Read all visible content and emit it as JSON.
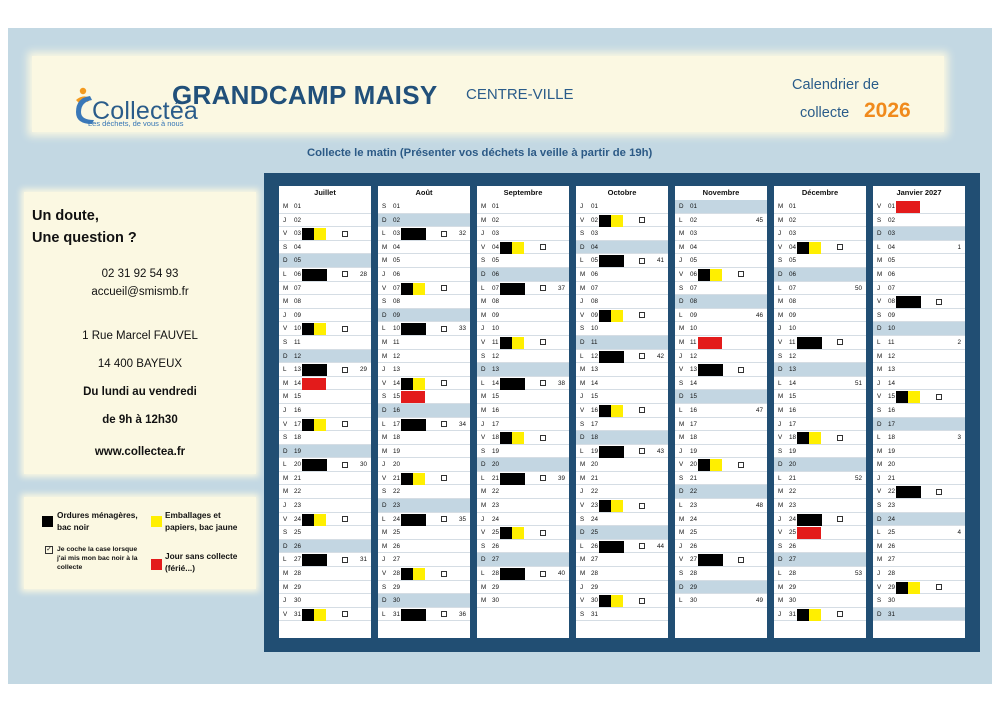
{
  "header": {
    "logo_text": "Collectéa",
    "logo_tagline": "Les déchets, de vous à nous",
    "town": "GRANDCAMP MAISY",
    "district": "CENTRE-VILLE",
    "calendar_label_line1": "Calendrier de",
    "calendar_label_line2": "collecte",
    "year": "2026"
  },
  "subtitle": "Collecte le matin (Présenter vos déchets la veille à partir de 19h)",
  "contact": {
    "question_line1": "Un doute,",
    "question_line2": "Une question ?",
    "phone": "02 31 92 54 93",
    "email": "accueil@smismb.fr",
    "street": "1 Rue Marcel FAUVEL",
    "city": "14 400 BAYEUX",
    "days": "Du lundi au vendredi",
    "hours": "de 9h à 12h30",
    "website": "www.collectea.fr"
  },
  "legend": {
    "black_label_line1": "Ordures ménagères,",
    "black_label_line2": "bac noir",
    "yellow_label_line1": "Emballages et",
    "yellow_label_line2": "papiers, bac jaune",
    "check_label_line1": "Je coche la case lorsque",
    "check_label_line2": "j'ai mis mon bac noir à la",
    "check_label_line3": "collecte",
    "check_mark": "✓",
    "red_label_line1": "Jour sans collecte",
    "red_label_line2": "(férié...)",
    "colors": {
      "black": "#000000",
      "yellow": "#ffef00",
      "red": "#e31b1b"
    }
  },
  "months": [
    {
      "name": "Juillet",
      "days": [
        {
          "d": "M",
          "n": "01"
        },
        {
          "d": "J",
          "n": "02"
        },
        {
          "d": "V",
          "n": "03",
          "t": "by",
          "cb": true
        },
        {
          "d": "S",
          "n": "04"
        },
        {
          "d": "D",
          "n": "05"
        },
        {
          "d": "L",
          "n": "06",
          "t": "b",
          "cb": true,
          "w": "28"
        },
        {
          "d": "M",
          "n": "07"
        },
        {
          "d": "M",
          "n": "08"
        },
        {
          "d": "J",
          "n": "09"
        },
        {
          "d": "V",
          "n": "10",
          "t": "by",
          "cb": true
        },
        {
          "d": "S",
          "n": "11"
        },
        {
          "d": "D",
          "n": "12"
        },
        {
          "d": "L",
          "n": "13",
          "t": "b",
          "cb": true,
          "w": "29"
        },
        {
          "d": "M",
          "n": "14",
          "t": "r"
        },
        {
          "d": "M",
          "n": "15"
        },
        {
          "d": "J",
          "n": "16"
        },
        {
          "d": "V",
          "n": "17",
          "t": "by",
          "cb": true
        },
        {
          "d": "S",
          "n": "18"
        },
        {
          "d": "D",
          "n": "19"
        },
        {
          "d": "L",
          "n": "20",
          "t": "b",
          "cb": true,
          "w": "30"
        },
        {
          "d": "M",
          "n": "21"
        },
        {
          "d": "M",
          "n": "22"
        },
        {
          "d": "J",
          "n": "23"
        },
        {
          "d": "V",
          "n": "24",
          "t": "by",
          "cb": true
        },
        {
          "d": "S",
          "n": "25"
        },
        {
          "d": "D",
          "n": "26"
        },
        {
          "d": "L",
          "n": "27",
          "t": "b",
          "cb": true,
          "w": "31"
        },
        {
          "d": "M",
          "n": "28"
        },
        {
          "d": "M",
          "n": "29"
        },
        {
          "d": "J",
          "n": "30"
        },
        {
          "d": "V",
          "n": "31",
          "t": "by",
          "cb": true
        }
      ]
    },
    {
      "name": "Août",
      "days": [
        {
          "d": "S",
          "n": "01"
        },
        {
          "d": "D",
          "n": "02"
        },
        {
          "d": "L",
          "n": "03",
          "t": "b",
          "cb": true,
          "w": "32"
        },
        {
          "d": "M",
          "n": "04"
        },
        {
          "d": "M",
          "n": "05"
        },
        {
          "d": "J",
          "n": "06"
        },
        {
          "d": "V",
          "n": "07",
          "t": "by",
          "cb": true
        },
        {
          "d": "S",
          "n": "08"
        },
        {
          "d": "D",
          "n": "09"
        },
        {
          "d": "L",
          "n": "10",
          "t": "b",
          "cb": true,
          "w": "33"
        },
        {
          "d": "M",
          "n": "11"
        },
        {
          "d": "M",
          "n": "12"
        },
        {
          "d": "J",
          "n": "13"
        },
        {
          "d": "V",
          "n": "14",
          "t": "by",
          "cb": true
        },
        {
          "d": "S",
          "n": "15",
          "t": "r"
        },
        {
          "d": "D",
          "n": "16"
        },
        {
          "d": "L",
          "n": "17",
          "t": "b",
          "cb": true,
          "w": "34"
        },
        {
          "d": "M",
          "n": "18"
        },
        {
          "d": "M",
          "n": "19"
        },
        {
          "d": "J",
          "n": "20"
        },
        {
          "d": "V",
          "n": "21",
          "t": "by",
          "cb": true
        },
        {
          "d": "S",
          "n": "22"
        },
        {
          "d": "D",
          "n": "23"
        },
        {
          "d": "L",
          "n": "24",
          "t": "b",
          "cb": true,
          "w": "35"
        },
        {
          "d": "M",
          "n": "25"
        },
        {
          "d": "M",
          "n": "26"
        },
        {
          "d": "J",
          "n": "27"
        },
        {
          "d": "V",
          "n": "28",
          "t": "by",
          "cb": true
        },
        {
          "d": "S",
          "n": "29"
        },
        {
          "d": "D",
          "n": "30"
        },
        {
          "d": "L",
          "n": "31",
          "t": "b",
          "cb": true,
          "w": "36"
        }
      ]
    },
    {
      "name": "Septembre",
      "days": [
        {
          "d": "M",
          "n": "01"
        },
        {
          "d": "M",
          "n": "02"
        },
        {
          "d": "J",
          "n": "03"
        },
        {
          "d": "V",
          "n": "04",
          "t": "by",
          "cb": true
        },
        {
          "d": "S",
          "n": "05"
        },
        {
          "d": "D",
          "n": "06"
        },
        {
          "d": "L",
          "n": "07",
          "t": "b",
          "cb": true,
          "w": "37"
        },
        {
          "d": "M",
          "n": "08"
        },
        {
          "d": "M",
          "n": "09"
        },
        {
          "d": "J",
          "n": "10"
        },
        {
          "d": "V",
          "n": "11",
          "t": "by",
          "cb": true
        },
        {
          "d": "S",
          "n": "12"
        },
        {
          "d": "D",
          "n": "13"
        },
        {
          "d": "L",
          "n": "14",
          "t": "b",
          "cb": true,
          "w": "38"
        },
        {
          "d": "M",
          "n": "15"
        },
        {
          "d": "M",
          "n": "16"
        },
        {
          "d": "J",
          "n": "17"
        },
        {
          "d": "V",
          "n": "18",
          "t": "by",
          "cb": true
        },
        {
          "d": "S",
          "n": "19"
        },
        {
          "d": "D",
          "n": "20"
        },
        {
          "d": "L",
          "n": "21",
          "t": "b",
          "cb": true,
          "w": "39"
        },
        {
          "d": "M",
          "n": "22"
        },
        {
          "d": "M",
          "n": "23"
        },
        {
          "d": "J",
          "n": "24"
        },
        {
          "d": "V",
          "n": "25",
          "t": "by",
          "cb": true
        },
        {
          "d": "S",
          "n": "26"
        },
        {
          "d": "D",
          "n": "27"
        },
        {
          "d": "L",
          "n": "28",
          "t": "b",
          "cb": true,
          "w": "40"
        },
        {
          "d": "M",
          "n": "29"
        },
        {
          "d": "M",
          "n": "30"
        }
      ]
    },
    {
      "name": "Octobre",
      "days": [
        {
          "d": "J",
          "n": "01"
        },
        {
          "d": "V",
          "n": "02",
          "t": "by",
          "cb": true
        },
        {
          "d": "S",
          "n": "03"
        },
        {
          "d": "D",
          "n": "04"
        },
        {
          "d": "L",
          "n": "05",
          "t": "b",
          "cb": true,
          "w": "41"
        },
        {
          "d": "M",
          "n": "06"
        },
        {
          "d": "M",
          "n": "07"
        },
        {
          "d": "J",
          "n": "08"
        },
        {
          "d": "V",
          "n": "09",
          "t": "by",
          "cb": true
        },
        {
          "d": "S",
          "n": "10"
        },
        {
          "d": "D",
          "n": "11"
        },
        {
          "d": "L",
          "n": "12",
          "t": "b",
          "cb": true,
          "w": "42"
        },
        {
          "d": "M",
          "n": "13"
        },
        {
          "d": "M",
          "n": "14"
        },
        {
          "d": "J",
          "n": "15"
        },
        {
          "d": "V",
          "n": "16",
          "t": "by",
          "cb": true
        },
        {
          "d": "S",
          "n": "17"
        },
        {
          "d": "D",
          "n": "18"
        },
        {
          "d": "L",
          "n": "19",
          "t": "b",
          "cb": true,
          "w": "43"
        },
        {
          "d": "M",
          "n": "20"
        },
        {
          "d": "M",
          "n": "21"
        },
        {
          "d": "J",
          "n": "22"
        },
        {
          "d": "V",
          "n": "23",
          "t": "by",
          "cb": true
        },
        {
          "d": "S",
          "n": "24"
        },
        {
          "d": "D",
          "n": "25"
        },
        {
          "d": "L",
          "n": "26",
          "t": "b",
          "cb": true,
          "w": "44"
        },
        {
          "d": "M",
          "n": "27"
        },
        {
          "d": "M",
          "n": "28"
        },
        {
          "d": "J",
          "n": "29"
        },
        {
          "d": "V",
          "n": "30",
          "t": "by",
          "cb": true
        },
        {
          "d": "S",
          "n": "31"
        }
      ]
    },
    {
      "name": "Novembre",
      "days": [
        {
          "d": "D",
          "n": "01"
        },
        {
          "d": "L",
          "n": "02",
          "w": "45"
        },
        {
          "d": "M",
          "n": "03"
        },
        {
          "d": "M",
          "n": "04"
        },
        {
          "d": "J",
          "n": "05"
        },
        {
          "d": "V",
          "n": "06",
          "t": "by",
          "cb": true
        },
        {
          "d": "S",
          "n": "07"
        },
        {
          "d": "D",
          "n": "08"
        },
        {
          "d": "L",
          "n": "09",
          "w": "46"
        },
        {
          "d": "M",
          "n": "10"
        },
        {
          "d": "M",
          "n": "11",
          "t": "r"
        },
        {
          "d": "J",
          "n": "12"
        },
        {
          "d": "V",
          "n": "13",
          "t": "b",
          "cb": true
        },
        {
          "d": "S",
          "n": "14"
        },
        {
          "d": "D",
          "n": "15"
        },
        {
          "d": "L",
          "n": "16",
          "w": "47"
        },
        {
          "d": "M",
          "n": "17"
        },
        {
          "d": "M",
          "n": "18"
        },
        {
          "d": "J",
          "n": "19"
        },
        {
          "d": "V",
          "n": "20",
          "t": "by",
          "cb": true
        },
        {
          "d": "S",
          "n": "21"
        },
        {
          "d": "D",
          "n": "22"
        },
        {
          "d": "L",
          "n": "23",
          "w": "48"
        },
        {
          "d": "M",
          "n": "24"
        },
        {
          "d": "M",
          "n": "25"
        },
        {
          "d": "J",
          "n": "26"
        },
        {
          "d": "V",
          "n": "27",
          "t": "b",
          "cb": true
        },
        {
          "d": "S",
          "n": "28"
        },
        {
          "d": "D",
          "n": "29"
        },
        {
          "d": "L",
          "n": "30",
          "w": "49"
        }
      ]
    },
    {
      "name": "Décembre",
      "days": [
        {
          "d": "M",
          "n": "01"
        },
        {
          "d": "M",
          "n": "02"
        },
        {
          "d": "J",
          "n": "03"
        },
        {
          "d": "V",
          "n": "04",
          "t": "by",
          "cb": true
        },
        {
          "d": "S",
          "n": "05"
        },
        {
          "d": "D",
          "n": "06"
        },
        {
          "d": "L",
          "n": "07",
          "w": "50"
        },
        {
          "d": "M",
          "n": "08"
        },
        {
          "d": "M",
          "n": "09"
        },
        {
          "d": "J",
          "n": "10"
        },
        {
          "d": "V",
          "n": "11",
          "t": "b",
          "cb": true
        },
        {
          "d": "S",
          "n": "12"
        },
        {
          "d": "D",
          "n": "13"
        },
        {
          "d": "L",
          "n": "14",
          "w": "51"
        },
        {
          "d": "M",
          "n": "15"
        },
        {
          "d": "M",
          "n": "16"
        },
        {
          "d": "J",
          "n": "17"
        },
        {
          "d": "V",
          "n": "18",
          "t": "by",
          "cb": true
        },
        {
          "d": "S",
          "n": "19"
        },
        {
          "d": "D",
          "n": "20"
        },
        {
          "d": "L",
          "n": "21",
          "w": "52"
        },
        {
          "d": "M",
          "n": "22"
        },
        {
          "d": "M",
          "n": "23"
        },
        {
          "d": "J",
          "n": "24",
          "t": "b",
          "cb": true
        },
        {
          "d": "V",
          "n": "25",
          "t": "r"
        },
        {
          "d": "S",
          "n": "26"
        },
        {
          "d": "D",
          "n": "27"
        },
        {
          "d": "L",
          "n": "28",
          "w": "53"
        },
        {
          "d": "M",
          "n": "29"
        },
        {
          "d": "M",
          "n": "30"
        },
        {
          "d": "J",
          "n": "31",
          "t": "by",
          "cb": true
        }
      ]
    },
    {
      "name": "Janvier 2027",
      "days": [
        {
          "d": "V",
          "n": "01",
          "t": "r"
        },
        {
          "d": "S",
          "n": "02"
        },
        {
          "d": "D",
          "n": "03"
        },
        {
          "d": "L",
          "n": "04",
          "w": "1"
        },
        {
          "d": "M",
          "n": "05"
        },
        {
          "d": "M",
          "n": "06"
        },
        {
          "d": "J",
          "n": "07"
        },
        {
          "d": "V",
          "n": "08",
          "t": "b",
          "cb": true
        },
        {
          "d": "S",
          "n": "09"
        },
        {
          "d": "D",
          "n": "10"
        },
        {
          "d": "L",
          "n": "11",
          "w": "2"
        },
        {
          "d": "M",
          "n": "12"
        },
        {
          "d": "M",
          "n": "13"
        },
        {
          "d": "J",
          "n": "14"
        },
        {
          "d": "V",
          "n": "15",
          "t": "by",
          "cb": true
        },
        {
          "d": "S",
          "n": "16"
        },
        {
          "d": "D",
          "n": "17"
        },
        {
          "d": "L",
          "n": "18",
          "w": "3"
        },
        {
          "d": "M",
          "n": "19"
        },
        {
          "d": "M",
          "n": "20"
        },
        {
          "d": "J",
          "n": "21"
        },
        {
          "d": "V",
          "n": "22",
          "t": "b",
          "cb": true
        },
        {
          "d": "S",
          "n": "23"
        },
        {
          "d": "D",
          "n": "24"
        },
        {
          "d": "L",
          "n": "25",
          "w": "4"
        },
        {
          "d": "M",
          "n": "26"
        },
        {
          "d": "M",
          "n": "27"
        },
        {
          "d": "J",
          "n": "28"
        },
        {
          "d": "V",
          "n": "29",
          "t": "by",
          "cb": true
        },
        {
          "d": "S",
          "n": "30"
        },
        {
          "d": "D",
          "n": "31"
        }
      ]
    }
  ]
}
